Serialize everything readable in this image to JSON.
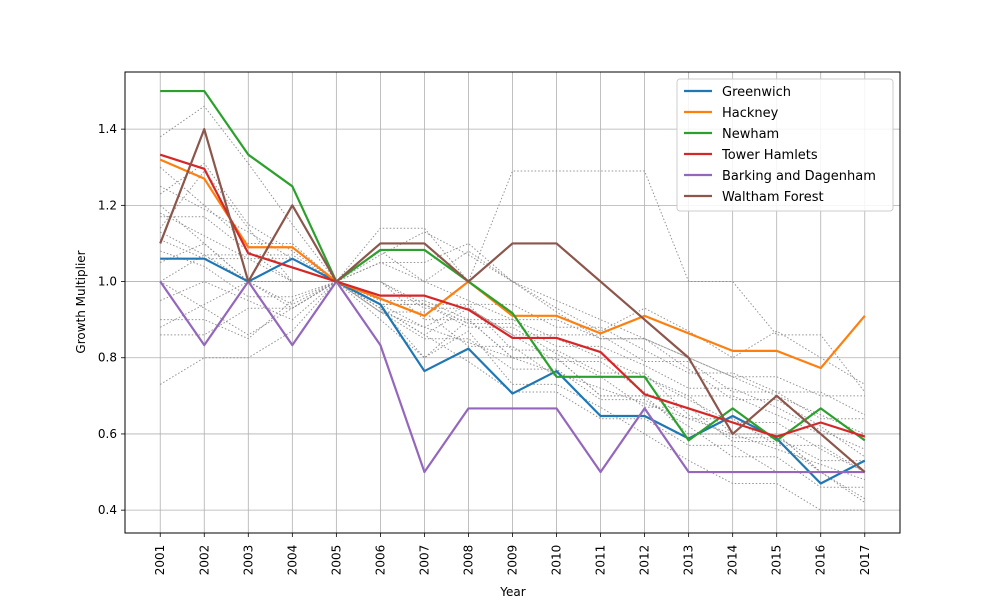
{
  "chart_data": {
    "type": "line",
    "xlabel": "Year",
    "ylabel": "Growth Multiplier",
    "x": [
      "2001",
      "2002",
      "2003",
      "2004",
      "2005",
      "2006",
      "2007",
      "2008",
      "2009",
      "2010",
      "2011",
      "2012",
      "2013",
      "2014",
      "2015",
      "2016",
      "2017"
    ],
    "ylim": [
      0.34,
      1.55
    ],
    "yticks": [
      0.4,
      0.6,
      0.8,
      1.0,
      1.2,
      1.4
    ],
    "ytick_labels": [
      "0.4",
      "0.6",
      "0.8",
      "1.0",
      "1.2",
      "1.4"
    ],
    "grid": true,
    "legend_position": "top-right",
    "series": [
      {
        "name": "Greenwich",
        "color": "#1f77b4",
        "values": [
          1.06,
          1.06,
          1.0,
          1.06,
          1.0,
          0.94,
          0.765,
          0.824,
          0.706,
          0.765,
          0.647,
          0.647,
          0.588,
          0.647,
          0.588,
          0.47,
          0.53
        ]
      },
      {
        "name": "Hackney",
        "color": "#ff7f0e",
        "values": [
          1.32,
          1.27,
          1.09,
          1.09,
          1.0,
          0.955,
          0.91,
          1.0,
          0.91,
          0.91,
          0.864,
          0.91,
          0.864,
          0.818,
          0.818,
          0.773,
          0.91
        ]
      },
      {
        "name": "Newham",
        "color": "#2ca02c",
        "values": [
          1.5,
          1.5,
          1.333,
          1.25,
          1.0,
          1.083,
          1.083,
          1.0,
          0.917,
          0.75,
          0.75,
          0.75,
          0.583,
          0.667,
          0.583,
          0.667,
          0.583
        ]
      },
      {
        "name": "Tower Hamlets",
        "color": "#d62728",
        "values": [
          1.333,
          1.296,
          1.074,
          1.037,
          1.0,
          0.963,
          0.963,
          0.926,
          0.852,
          0.852,
          0.815,
          0.704,
          0.667,
          0.63,
          0.593,
          0.63,
          0.593
        ]
      },
      {
        "name": "Barking and Dagenham",
        "color": "#9467bd",
        "values": [
          1.0,
          0.833,
          1.0,
          0.833,
          1.0,
          0.833,
          0.5,
          0.667,
          0.667,
          0.667,
          0.5,
          0.667,
          0.5,
          0.5,
          0.5,
          0.5,
          0.5
        ]
      },
      {
        "name": "Waltham Forest",
        "color": "#8c564b",
        "values": [
          1.1,
          1.4,
          1.0,
          1.2,
          1.0,
          1.1,
          1.1,
          1.0,
          1.1,
          1.1,
          1.0,
          0.9,
          0.8,
          0.6,
          0.7,
          0.6,
          0.5
        ]
      }
    ],
    "background_series": {
      "color": "#888888",
      "style": "dotted",
      "lines": [
        [
          1.2,
          1.1,
          1.0,
          1.0,
          1.0,
          0.9,
          0.8,
          0.9,
          0.8,
          0.8,
          0.7,
          0.7,
          0.6,
          0.6,
          0.6,
          0.5,
          0.5
        ],
        [
          0.88,
          0.94,
          1.0,
          0.94,
          1.0,
          0.94,
          0.88,
          0.94,
          0.82,
          0.82,
          0.76,
          0.76,
          0.65,
          0.59,
          0.59,
          0.53,
          0.53
        ],
        [
          1.38,
          1.46,
          1.31,
          1.15,
          1.0,
          0.92,
          0.85,
          0.85,
          0.77,
          0.77,
          0.69,
          0.69,
          0.62,
          0.54,
          0.54,
          0.46,
          0.46
        ],
        [
          1.14,
          1.29,
          1.14,
          1.0,
          1.0,
          1.14,
          1.14,
          1.0,
          1.29,
          1.29,
          1.29,
          1.29,
          1.0,
          1.0,
          0.86,
          0.86,
          0.71
        ],
        [
          0.73,
          0.8,
          0.8,
          0.87,
          1.0,
          0.93,
          0.8,
          0.87,
          0.73,
          0.73,
          0.67,
          0.6,
          0.53,
          0.47,
          0.47,
          0.4,
          0.4
        ],
        [
          1.08,
          1.04,
          0.96,
          0.96,
          1.0,
          0.92,
          0.88,
          0.84,
          0.8,
          0.76,
          0.72,
          0.68,
          0.64,
          0.6,
          0.56,
          0.52,
          0.48
        ],
        [
          1.25,
          1.19,
          1.13,
          1.06,
          1.0,
          0.94,
          0.94,
          0.88,
          0.88,
          0.81,
          0.75,
          0.75,
          0.69,
          0.63,
          0.63,
          0.56,
          0.5
        ],
        [
          0.9,
          0.9,
          0.85,
          0.95,
          1.0,
          1.05,
          1.0,
          0.95,
          0.9,
          0.85,
          0.8,
          0.75,
          0.7,
          0.7,
          0.65,
          0.6,
          0.6
        ],
        [
          1.18,
          1.12,
          1.06,
          1.06,
          1.0,
          1.0,
          0.94,
          0.94,
          0.94,
          0.88,
          0.88,
          0.82,
          0.76,
          0.76,
          0.71,
          0.71,
          0.65
        ],
        [
          1.0,
          1.07,
          1.0,
          0.93,
          1.0,
          0.93,
          0.86,
          0.93,
          0.86,
          0.79,
          0.79,
          0.71,
          0.64,
          0.64,
          0.57,
          0.57,
          0.5
        ],
        [
          1.3,
          1.2,
          1.1,
          1.1,
          1.0,
          1.0,
          0.9,
          0.9,
          0.8,
          0.8,
          0.7,
          0.7,
          0.7,
          0.6,
          0.6,
          0.5,
          0.5
        ],
        [
          1.11,
          1.06,
          1.06,
          1.0,
          1.0,
          0.94,
          0.94,
          0.89,
          0.89,
          0.83,
          0.83,
          0.78,
          0.72,
          0.72,
          0.67,
          0.61,
          0.56
        ],
        [
          0.86,
          0.86,
          0.93,
          0.93,
          1.0,
          1.0,
          0.93,
          0.93,
          0.86,
          0.86,
          0.86,
          0.79,
          0.79,
          0.71,
          0.71,
          0.64,
          0.64
        ],
        [
          1.23,
          1.31,
          1.15,
          1.08,
          1.0,
          1.08,
          1.0,
          1.08,
          1.0,
          0.92,
          0.85,
          0.85,
          0.77,
          0.69,
          0.69,
          0.62,
          0.54
        ],
        [
          1.05,
          1.1,
          1.0,
          1.0,
          1.0,
          0.95,
          0.95,
          0.9,
          0.9,
          0.9,
          0.85,
          0.85,
          0.8,
          0.75,
          0.75,
          0.7,
          0.7
        ],
        [
          0.95,
          1.0,
          0.95,
          0.9,
          1.0,
          1.05,
          1.05,
          1.1,
          1.0,
          0.95,
          0.9,
          0.85,
          0.8,
          0.75,
          0.7,
          0.65,
          0.6
        ],
        [
          1.17,
          1.17,
          1.08,
          1.0,
          1.0,
          0.92,
          0.92,
          0.83,
          0.83,
          0.75,
          0.75,
          0.67,
          0.67,
          0.58,
          0.58,
          0.5,
          0.42
        ],
        [
          1.13,
          1.07,
          1.07,
          1.07,
          1.0,
          1.07,
          1.13,
          1.07,
          1.0,
          0.93,
          0.87,
          0.93,
          0.87,
          0.8,
          0.87,
          0.8,
          0.73
        ],
        [
          1.0,
          0.93,
          0.86,
          0.93,
          1.0,
          0.93,
          0.86,
          0.79,
          0.71,
          0.71,
          0.64,
          0.64,
          0.57,
          0.57,
          0.5,
          0.5,
          0.43
        ]
      ]
    }
  }
}
